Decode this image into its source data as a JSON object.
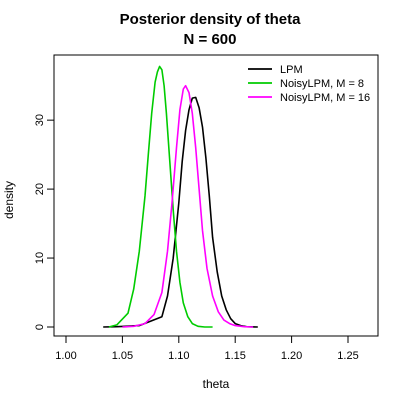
{
  "chart_data": {
    "type": "line",
    "title": "Posterior density of theta",
    "subtitle": "N = 600",
    "xlabel": "theta",
    "ylabel": "density",
    "xlim": [
      1.0,
      1.25
    ],
    "ylim": [
      0,
      40
    ],
    "x_ticks": [
      1.0,
      1.05,
      1.1,
      1.15,
      1.2,
      1.25
    ],
    "x_tick_labels": [
      "1.00",
      "1.05",
      "1.10",
      "1.15",
      "1.20",
      "1.25"
    ],
    "y_ticks": [
      0,
      10,
      20,
      30
    ],
    "y_tick_labels": [
      "0",
      "10",
      "20",
      "30"
    ],
    "grid": false,
    "legend_position": "top-right",
    "series": [
      {
        "name": "LPM",
        "color": "#000000",
        "x": [
          1.033,
          1.045,
          1.065,
          1.085,
          1.09,
          1.095,
          1.1,
          1.103,
          1.106,
          1.109,
          1.112,
          1.115,
          1.118,
          1.121,
          1.124,
          1.127,
          1.13,
          1.134,
          1.138,
          1.142,
          1.146,
          1.15,
          1.155,
          1.16,
          1.17
        ],
        "y": [
          0,
          0.05,
          0.2,
          1.5,
          4.5,
          10,
          18,
          24,
          28.5,
          31.5,
          33.2,
          33.3,
          31.8,
          29,
          24.5,
          19,
          13,
          8,
          4.5,
          2.5,
          1.2,
          0.5,
          0.2,
          0.05,
          0
        ]
      },
      {
        "name": "NoisyLPM, M = 8",
        "color": "#00cc00",
        "x": [
          1.038,
          1.045,
          1.055,
          1.06,
          1.065,
          1.07,
          1.073,
          1.076,
          1.079,
          1.081,
          1.083,
          1.085,
          1.087,
          1.089,
          1.092,
          1.095,
          1.098,
          1.101,
          1.104,
          1.108,
          1.112,
          1.117,
          1.123,
          1.13
        ],
        "y": [
          0,
          0.3,
          2.0,
          5.5,
          11,
          19,
          25,
          31,
          35.5,
          37,
          37.8,
          37.3,
          35,
          31,
          24,
          17,
          11,
          6.5,
          3.5,
          1.5,
          0.5,
          0.1,
          0,
          0
        ]
      },
      {
        "name": "NoisyLPM, M = 16",
        "color": "#ff00ff",
        "x": [
          1.05,
          1.06,
          1.07,
          1.078,
          1.085,
          1.09,
          1.094,
          1.098,
          1.101,
          1.104,
          1.106,
          1.109,
          1.112,
          1.115,
          1.118,
          1.121,
          1.125,
          1.13,
          1.135,
          1.14,
          1.145,
          1.15,
          1.158,
          1.166
        ],
        "y": [
          0,
          0.1,
          0.5,
          1.8,
          5,
          11,
          18,
          26,
          31.5,
          34.5,
          35,
          34,
          31,
          26,
          20,
          14,
          8.5,
          4.5,
          2.2,
          1.0,
          0.5,
          0.2,
          0.05,
          0
        ]
      }
    ]
  }
}
